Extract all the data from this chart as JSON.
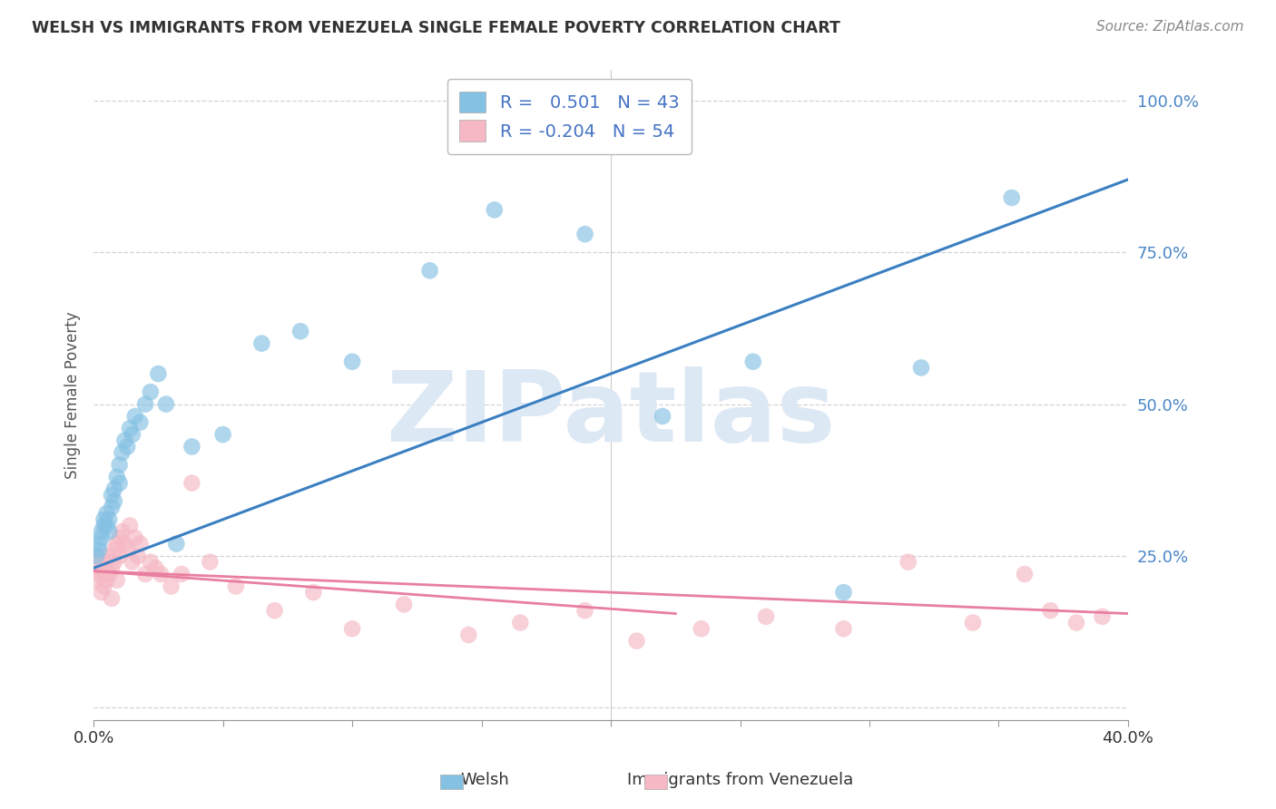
{
  "title": "WELSH VS IMMIGRANTS FROM VENEZUELA SINGLE FEMALE POVERTY CORRELATION CHART",
  "source": "Source: ZipAtlas.com",
  "ylabel": "Single Female Poverty",
  "xlabel_welsh": "Welsh",
  "xlabel_venezuela": "Immigrants from Venezuela",
  "r_welsh": 0.501,
  "n_welsh": 43,
  "r_venezuela": -0.204,
  "n_venezuela": 54,
  "xlim": [
    0.0,
    0.4
  ],
  "ylim": [
    -0.02,
    1.05
  ],
  "welsh_color": "#85c1e3",
  "venezuela_color": "#f5b8c4",
  "welsh_line_color": "#3a7fc1",
  "venezuela_line_color": "#e87fa0",
  "watermark": "ZIPatlas",
  "watermark_color": "#dde8f5",
  "background_color": "#ffffff",
  "welsh_x": [
    0.001,
    0.002,
    0.002,
    0.003,
    0.003,
    0.004,
    0.004,
    0.005,
    0.005,
    0.006,
    0.006,
    0.007,
    0.007,
    0.008,
    0.008,
    0.009,
    0.01,
    0.01,
    0.011,
    0.012,
    0.013,
    0.014,
    0.015,
    0.016,
    0.018,
    0.02,
    0.022,
    0.025,
    0.028,
    0.032,
    0.038,
    0.05,
    0.065,
    0.08,
    0.1,
    0.13,
    0.155,
    0.19,
    0.22,
    0.255,
    0.29,
    0.32,
    0.355
  ],
  "welsh_y": [
    0.25,
    0.26,
    0.27,
    0.28,
    0.29,
    0.3,
    0.31,
    0.3,
    0.32,
    0.29,
    0.31,
    0.33,
    0.35,
    0.36,
    0.34,
    0.38,
    0.4,
    0.37,
    0.42,
    0.44,
    0.43,
    0.46,
    0.45,
    0.48,
    0.47,
    0.5,
    0.52,
    0.55,
    0.5,
    0.27,
    0.43,
    0.45,
    0.6,
    0.62,
    0.57,
    0.72,
    0.82,
    0.78,
    0.48,
    0.57,
    0.19,
    0.56,
    0.84
  ],
  "venezuela_x": [
    0.001,
    0.001,
    0.002,
    0.002,
    0.003,
    0.003,
    0.004,
    0.004,
    0.005,
    0.005,
    0.006,
    0.006,
    0.007,
    0.007,
    0.008,
    0.008,
    0.009,
    0.009,
    0.01,
    0.01,
    0.011,
    0.012,
    0.013,
    0.014,
    0.015,
    0.016,
    0.017,
    0.018,
    0.02,
    0.022,
    0.024,
    0.026,
    0.03,
    0.034,
    0.038,
    0.045,
    0.055,
    0.07,
    0.085,
    0.1,
    0.12,
    0.145,
    0.165,
    0.19,
    0.21,
    0.235,
    0.26,
    0.29,
    0.315,
    0.34,
    0.36,
    0.37,
    0.38,
    0.39
  ],
  "venezuela_y": [
    0.21,
    0.24,
    0.22,
    0.25,
    0.19,
    0.23,
    0.2,
    0.22,
    0.21,
    0.24,
    0.25,
    0.22,
    0.18,
    0.23,
    0.26,
    0.24,
    0.21,
    0.27,
    0.28,
    0.25,
    0.29,
    0.27,
    0.26,
    0.3,
    0.24,
    0.28,
    0.25,
    0.27,
    0.22,
    0.24,
    0.23,
    0.22,
    0.2,
    0.22,
    0.37,
    0.24,
    0.2,
    0.16,
    0.19,
    0.13,
    0.17,
    0.12,
    0.14,
    0.16,
    0.11,
    0.13,
    0.15,
    0.13,
    0.24,
    0.14,
    0.22,
    0.16,
    0.14,
    0.15
  ]
}
